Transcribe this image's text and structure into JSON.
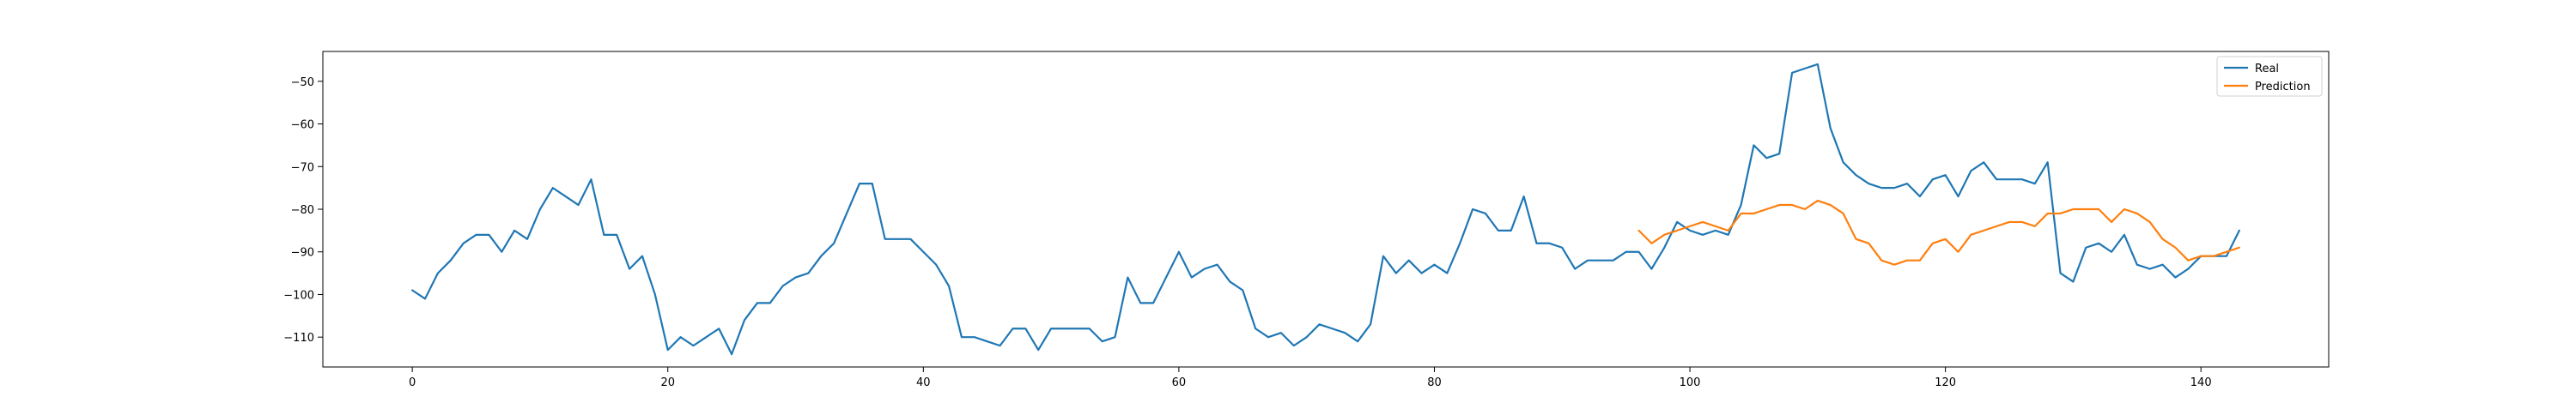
{
  "chart_data": {
    "type": "line",
    "title": "",
    "xlabel": "",
    "ylabel": "",
    "xlim": [
      -7,
      150
    ],
    "ylim": [
      -117,
      -43
    ],
    "x_ticks": [
      0,
      20,
      40,
      60,
      80,
      100,
      120,
      140
    ],
    "y_ticks": [
      -50,
      -60,
      -70,
      -80,
      -90,
      -100,
      -110
    ],
    "grid": false,
    "legend_position": "top-right",
    "series": [
      {
        "name": "Real",
        "color": "#1f77b4",
        "x_start": 0,
        "values": [
          -99,
          -101,
          -95,
          -92,
          -88,
          -86,
          -86,
          -90,
          -85,
          -87,
          -80,
          -75,
          -77,
          -79,
          -73,
          -86,
          -86,
          -94,
          -91,
          -100,
          -113,
          -110,
          -112,
          -110,
          -108,
          -114,
          -106,
          -102,
          -102,
          -98,
          -96,
          -95,
          -91,
          -88,
          -81,
          -74,
          -74,
          -87,
          -87,
          -87,
          -90,
          -93,
          -98,
          -110,
          -110,
          -111,
          -112,
          -108,
          -108,
          -113,
          -108,
          -108,
          -108,
          -108,
          -111,
          -110,
          -96,
          -102,
          -102,
          -96,
          -90,
          -96,
          -94,
          -93,
          -97,
          -99,
          -108,
          -110,
          -109,
          -112,
          -110,
          -107,
          -108,
          -109,
          -111,
          -107,
          -91,
          -95,
          -92,
          -95,
          -93,
          -95,
          -88,
          -80,
          -81,
          -85,
          -85,
          -77,
          -88,
          -88,
          -89,
          -94,
          -92,
          -92,
          -92,
          -90,
          -90,
          -94,
          -89,
          -83,
          -85,
          -86,
          -85,
          -86,
          -79,
          -65,
          -68,
          -67,
          -48,
          -47,
          -46,
          -61,
          -69,
          -72,
          -74,
          -75,
          -75,
          -74,
          -77,
          -73,
          -72,
          -77,
          -71,
          -69,
          -73,
          -73,
          -73,
          -74,
          -69,
          -95,
          -97,
          -89,
          -88,
          -90,
          -86,
          -93,
          -94,
          -93,
          -96,
          -94,
          -91,
          -91,
          -91,
          -85
        ]
      },
      {
        "name": "Prediction",
        "color": "#ff7f0e",
        "x_start": 96,
        "values": [
          -85,
          -88,
          -86,
          -85,
          -84,
          -83,
          -84,
          -85,
          -81,
          -81,
          -80,
          -79,
          -79,
          -80,
          -78,
          -79,
          -81,
          -87,
          -88,
          -92,
          -93,
          -92,
          -92,
          -88,
          -87,
          -90,
          -86,
          -85,
          -84,
          -83,
          -83,
          -84,
          -81,
          -81,
          -80,
          -80,
          -80,
          -83,
          -80,
          -81,
          -83,
          -87,
          -89,
          -92,
          -91,
          -91,
          -90,
          -89
        ]
      }
    ]
  }
}
